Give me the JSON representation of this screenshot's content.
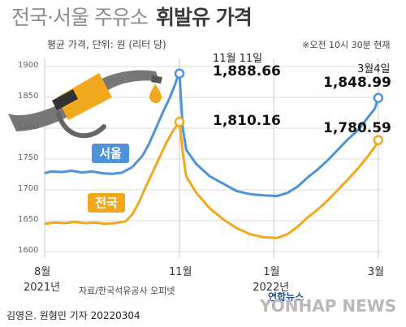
{
  "header": {
    "title_light": "전국·서울 주유소",
    "title_bold": "휘발유 가격",
    "subtitle": "평균 가격, 단위: 원 (리터 당)",
    "note": "※오전 10시 30분 현재"
  },
  "chart_data": {
    "type": "line",
    "title": "전국·서울 주유소 휘발유 가격",
    "ylim": [
      1600,
      1900
    ],
    "yticks": [
      1600,
      1650,
      1700,
      1750,
      1800,
      1850,
      1900
    ],
    "xticks": [
      {
        "label": "8월",
        "sub": "2021년",
        "pos": 0.0
      },
      {
        "label": "11월",
        "sub": "",
        "pos": 0.4
      },
      {
        "label": "1월",
        "sub": "2022년",
        "pos": 0.68
      },
      {
        "label": "3월",
        "sub": "",
        "pos": 0.99
      }
    ],
    "series": [
      {
        "name": "서울",
        "color": "#4f92d8",
        "points": [
          [
            0.0,
            1727
          ],
          [
            0.02,
            1730
          ],
          [
            0.05,
            1729
          ],
          [
            0.08,
            1731
          ],
          [
            0.11,
            1728
          ],
          [
            0.14,
            1730
          ],
          [
            0.17,
            1727
          ],
          [
            0.2,
            1726
          ],
          [
            0.23,
            1728
          ],
          [
            0.26,
            1737
          ],
          [
            0.29,
            1755
          ],
          [
            0.31,
            1775
          ],
          [
            0.33,
            1800
          ],
          [
            0.35,
            1825
          ],
          [
            0.37,
            1848
          ],
          [
            0.385,
            1868
          ],
          [
            0.395,
            1884
          ],
          [
            0.4,
            1888.66
          ],
          [
            0.41,
            1800
          ],
          [
            0.42,
            1765
          ],
          [
            0.45,
            1742
          ],
          [
            0.49,
            1722
          ],
          [
            0.53,
            1710
          ],
          [
            0.57,
            1698
          ],
          [
            0.61,
            1693
          ],
          [
            0.65,
            1691
          ],
          [
            0.69,
            1690
          ],
          [
            0.72,
            1695
          ],
          [
            0.75,
            1705
          ],
          [
            0.78,
            1720
          ],
          [
            0.81,
            1733
          ],
          [
            0.84,
            1748
          ],
          [
            0.87,
            1765
          ],
          [
            0.9,
            1782
          ],
          [
            0.93,
            1797
          ],
          [
            0.96,
            1818
          ],
          [
            0.98,
            1832
          ],
          [
            0.99,
            1848.99
          ]
        ]
      },
      {
        "name": "전국",
        "color": "#f0a81e",
        "points": [
          [
            0.0,
            1645
          ],
          [
            0.03,
            1647
          ],
          [
            0.06,
            1646
          ],
          [
            0.09,
            1648
          ],
          [
            0.12,
            1646
          ],
          [
            0.15,
            1647
          ],
          [
            0.18,
            1645
          ],
          [
            0.21,
            1646
          ],
          [
            0.24,
            1649
          ],
          [
            0.26,
            1660
          ],
          [
            0.28,
            1680
          ],
          [
            0.3,
            1705
          ],
          [
            0.32,
            1728
          ],
          [
            0.34,
            1752
          ],
          [
            0.36,
            1775
          ],
          [
            0.38,
            1795
          ],
          [
            0.4,
            1810.16
          ],
          [
            0.41,
            1760
          ],
          [
            0.42,
            1722
          ],
          [
            0.45,
            1695
          ],
          [
            0.49,
            1670
          ],
          [
            0.53,
            1652
          ],
          [
            0.57,
            1638
          ],
          [
            0.61,
            1628
          ],
          [
            0.65,
            1623
          ],
          [
            0.69,
            1622
          ],
          [
            0.72,
            1628
          ],
          [
            0.75,
            1640
          ],
          [
            0.78,
            1655
          ],
          [
            0.81,
            1668
          ],
          [
            0.84,
            1683
          ],
          [
            0.87,
            1700
          ],
          [
            0.9,
            1717
          ],
          [
            0.93,
            1735
          ],
          [
            0.96,
            1755
          ],
          [
            0.98,
            1770
          ],
          [
            0.99,
            1780.59
          ]
        ]
      }
    ],
    "annotations": [
      {
        "date": "11월 11일",
        "seoul": "1,888.66",
        "national": "1,810.16"
      },
      {
        "date": "3월4일",
        "seoul": "1,848.99",
        "national": "1,780.59"
      }
    ]
  },
  "footer": {
    "source": "자료/한국석유공사 오피넷",
    "byline": "김영은. 원형민 기자  20220304",
    "brand": "연합뉴스",
    "watermark": "YONHAP NEWS"
  }
}
